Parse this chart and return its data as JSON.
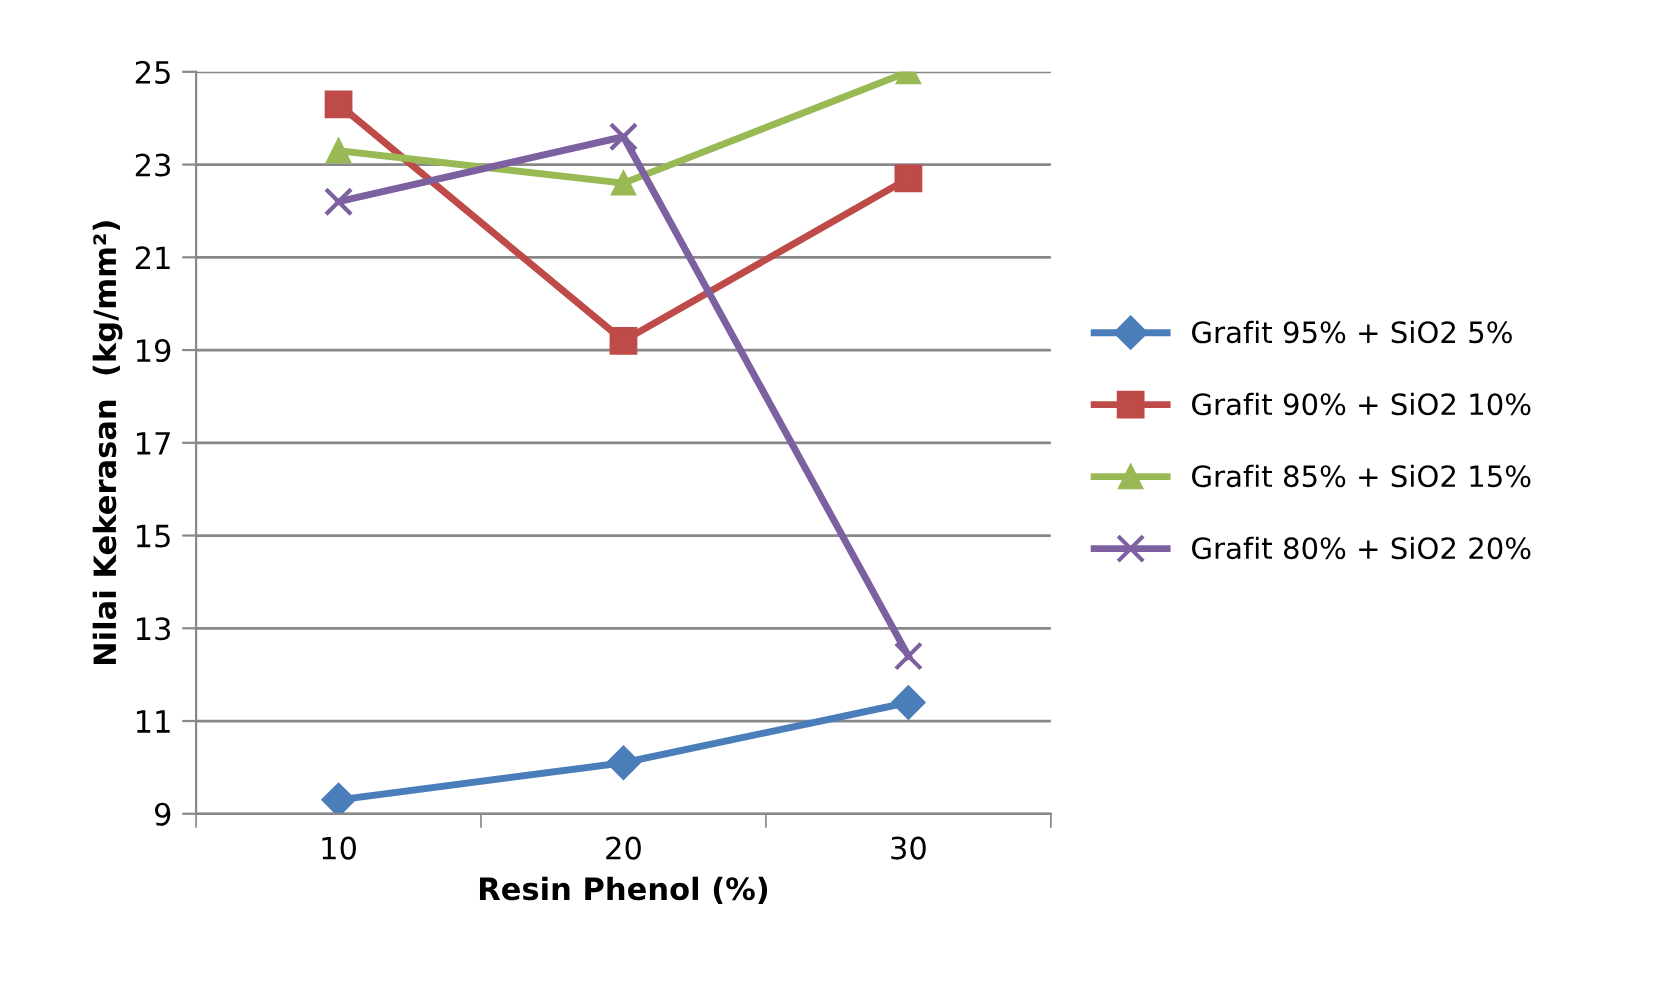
{
  "chart_data": {
    "type": "line",
    "xlabel": "Resin Phenol (%)",
    "ylabel": "Nilai Kekerasan  (kg/mm²)",
    "categories": [
      "10",
      "20",
      "30"
    ],
    "series": [
      {
        "name": "Grafit 95% + SiO2 5%",
        "color": "#4a7ebb",
        "marker": "diamond",
        "values": [
          9.3,
          10.1,
          11.4
        ]
      },
      {
        "name": "Grafit 90% + SiO2 10%",
        "color": "#be4b48",
        "marker": "square",
        "values": [
          24.3,
          19.2,
          22.7
        ]
      },
      {
        "name": "Grafit 85% + SiO2 15%",
        "color": "#98b954",
        "marker": "triangle",
        "values": [
          23.3,
          22.6,
          25.0
        ]
      },
      {
        "name": "Grafit 80% + SiO2 20%",
        "color": "#7d60a0",
        "marker": "cross",
        "values": [
          22.2,
          23.6,
          12.4
        ]
      }
    ],
    "ylim": [
      9,
      25
    ],
    "yticks": [
      9,
      11,
      13,
      15,
      17,
      19,
      21,
      23,
      25
    ],
    "grid": "y",
    "legend": "right",
    "line_style": "solid"
  }
}
